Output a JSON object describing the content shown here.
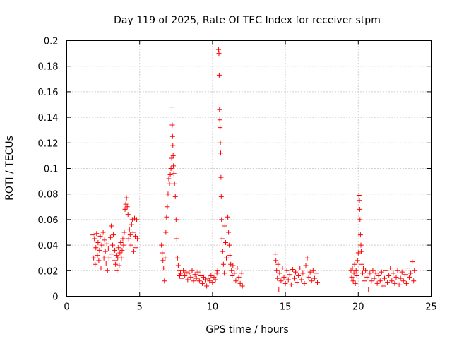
{
  "chart_data": {
    "type": "scatter",
    "title": "Day 119 of 2025, Rate Of TEC Index for receiver stpm",
    "xlabel": "GPS time / hours",
    "ylabel": "ROTI / TECUs",
    "xlim": [
      0,
      25
    ],
    "ylim": [
      0,
      0.2
    ],
    "xticks": [
      0,
      5,
      10,
      15,
      20,
      25
    ],
    "yticks": [
      0,
      0.02,
      0.04,
      0.06,
      0.08,
      0.1,
      0.12,
      0.14,
      0.16,
      0.18,
      0.2
    ],
    "xtick_labels": [
      "0",
      "5",
      "10",
      "15",
      "20",
      "25"
    ],
    "ytick_labels": [
      "0",
      "0.02",
      "0.04",
      "0.06",
      "0.08",
      "0.1",
      "0.12",
      "0.14",
      "0.16",
      "0.18",
      "0.2"
    ],
    "grid": true,
    "marker": "+",
    "color": "#ff0000",
    "series": [
      {
        "name": "ROTI",
        "points": [
          [
            1.8,
            0.048
          ],
          [
            1.85,
            0.03
          ],
          [
            1.9,
            0.045
          ],
          [
            1.95,
            0.025
          ],
          [
            2.0,
            0.038
          ],
          [
            2.05,
            0.049
          ],
          [
            2.1,
            0.032
          ],
          [
            2.15,
            0.042
          ],
          [
            2.2,
            0.028
          ],
          [
            2.25,
            0.036
          ],
          [
            2.3,
            0.047
          ],
          [
            2.35,
            0.022
          ],
          [
            2.4,
            0.04
          ],
          [
            2.5,
            0.05
          ],
          [
            2.55,
            0.03
          ],
          [
            2.6,
            0.044
          ],
          [
            2.65,
            0.035
          ],
          [
            2.7,
            0.026
          ],
          [
            2.75,
            0.041
          ],
          [
            2.8,
            0.02
          ],
          [
            2.85,
            0.037
          ],
          [
            2.9,
            0.03
          ],
          [
            3.0,
            0.046
          ],
          [
            3.05,
            0.055
          ],
          [
            3.1,
            0.033
          ],
          [
            3.15,
            0.04
          ],
          [
            3.2,
            0.048
          ],
          [
            3.25,
            0.028
          ],
          [
            3.3,
            0.036
          ],
          [
            3.35,
            0.025
          ],
          [
            3.4,
            0.032
          ],
          [
            3.45,
            0.02
          ],
          [
            3.5,
            0.03
          ],
          [
            3.55,
            0.038
          ],
          [
            3.6,
            0.024
          ],
          [
            3.65,
            0.034
          ],
          [
            3.7,
            0.042
          ],
          [
            3.75,
            0.03
          ],
          [
            3.8,
            0.036
          ],
          [
            3.85,
            0.045
          ],
          [
            3.9,
            0.04
          ],
          [
            3.95,
            0.05
          ],
          [
            4.0,
            0.068
          ],
          [
            4.05,
            0.072
          ],
          [
            4.1,
            0.077
          ],
          [
            4.15,
            0.07
          ],
          [
            4.2,
            0.064
          ],
          [
            4.25,
            0.045
          ],
          [
            4.3,
            0.052
          ],
          [
            4.35,
            0.048
          ],
          [
            4.4,
            0.04
          ],
          [
            4.45,
            0.056
          ],
          [
            4.5,
            0.06
          ],
          [
            4.55,
            0.05
          ],
          [
            4.6,
            0.035
          ],
          [
            4.65,
            0.061
          ],
          [
            4.7,
            0.047
          ],
          [
            4.75,
            0.038
          ],
          [
            4.8,
            0.06
          ],
          [
            4.85,
            0.045
          ],
          [
            6.5,
            0.04
          ],
          [
            6.55,
            0.034
          ],
          [
            6.6,
            0.028
          ],
          [
            6.65,
            0.022
          ],
          [
            6.7,
            0.012
          ],
          [
            6.75,
            0.03
          ],
          [
            6.8,
            0.05
          ],
          [
            6.85,
            0.062
          ],
          [
            6.9,
            0.07
          ],
          [
            6.95,
            0.08
          ],
          [
            7.0,
            0.092
          ],
          [
            7.05,
            0.088
          ],
          [
            7.1,
            0.095
          ],
          [
            7.15,
            0.1
          ],
          [
            7.2,
            0.108
          ],
          [
            7.22,
            0.148
          ],
          [
            7.24,
            0.134
          ],
          [
            7.26,
            0.125
          ],
          [
            7.28,
            0.118
          ],
          [
            7.3,
            0.11
          ],
          [
            7.32,
            0.102
          ],
          [
            7.35,
            0.096
          ],
          [
            7.4,
            0.088
          ],
          [
            7.45,
            0.078
          ],
          [
            7.5,
            0.06
          ],
          [
            7.55,
            0.045
          ],
          [
            7.6,
            0.03
          ],
          [
            7.65,
            0.024
          ],
          [
            7.7,
            0.02
          ],
          [
            7.75,
            0.016
          ],
          [
            7.8,
            0.018
          ],
          [
            7.9,
            0.014
          ],
          [
            8.0,
            0.02
          ],
          [
            8.1,
            0.016
          ],
          [
            8.2,
            0.019
          ],
          [
            8.3,
            0.013
          ],
          [
            8.4,
            0.018
          ],
          [
            8.5,
            0.015
          ],
          [
            8.6,
            0.02
          ],
          [
            8.7,
            0.012
          ],
          [
            8.8,
            0.017
          ],
          [
            8.9,
            0.014
          ],
          [
            9.0,
            0.019
          ],
          [
            9.1,
            0.012
          ],
          [
            9.2,
            0.016
          ],
          [
            9.3,
            0.01
          ],
          [
            9.4,
            0.015
          ],
          [
            9.5,
            0.013
          ],
          [
            9.6,
            0.008
          ],
          [
            9.7,
            0.014
          ],
          [
            9.8,
            0.012
          ],
          [
            9.9,
            0.016
          ],
          [
            10.0,
            0.011
          ],
          [
            10.1,
            0.015
          ],
          [
            10.2,
            0.013
          ],
          [
            10.3,
            0.018
          ],
          [
            10.35,
            0.02
          ],
          [
            10.42,
            0.193
          ],
          [
            10.44,
            0.19
          ],
          [
            10.46,
            0.173
          ],
          [
            10.48,
            0.146
          ],
          [
            10.5,
            0.138
          ],
          [
            10.52,
            0.132
          ],
          [
            10.54,
            0.12
          ],
          [
            10.56,
            0.112
          ],
          [
            10.58,
            0.093
          ],
          [
            10.6,
            0.078
          ],
          [
            10.62,
            0.06
          ],
          [
            10.65,
            0.045
          ],
          [
            10.7,
            0.035
          ],
          [
            10.75,
            0.025
          ],
          [
            10.8,
            0.018
          ],
          [
            10.85,
            0.055
          ],
          [
            10.9,
            0.042
          ],
          [
            10.95,
            0.03
          ],
          [
            11.0,
            0.058
          ],
          [
            11.05,
            0.062
          ],
          [
            11.1,
            0.05
          ],
          [
            11.15,
            0.04
          ],
          [
            11.2,
            0.032
          ],
          [
            11.25,
            0.025
          ],
          [
            11.3,
            0.02
          ],
          [
            11.35,
            0.016
          ],
          [
            11.4,
            0.024
          ],
          [
            11.5,
            0.018
          ],
          [
            11.6,
            0.012
          ],
          [
            11.7,
            0.022
          ],
          [
            11.8,
            0.015
          ],
          [
            11.9,
            0.01
          ],
          [
            12.0,
            0.018
          ],
          [
            12.05,
            0.008
          ],
          [
            14.3,
            0.033
          ],
          [
            14.35,
            0.028
          ],
          [
            14.4,
            0.02
          ],
          [
            14.45,
            0.014
          ],
          [
            14.5,
            0.025
          ],
          [
            14.55,
            0.005
          ],
          [
            14.6,
            0.018
          ],
          [
            14.7,
            0.012
          ],
          [
            14.8,
            0.022
          ],
          [
            14.9,
            0.015
          ],
          [
            15.0,
            0.01
          ],
          [
            15.1,
            0.02
          ],
          [
            15.2,
            0.013
          ],
          [
            15.3,
            0.017
          ],
          [
            15.4,
            0.009
          ],
          [
            15.5,
            0.021
          ],
          [
            15.6,
            0.014
          ],
          [
            15.7,
            0.019
          ],
          [
            15.8,
            0.011
          ],
          [
            15.9,
            0.016
          ],
          [
            16.0,
            0.022
          ],
          [
            16.1,
            0.013
          ],
          [
            16.2,
            0.018
          ],
          [
            16.3,
            0.01
          ],
          [
            16.4,
            0.024
          ],
          [
            16.5,
            0.03
          ],
          [
            16.6,
            0.015
          ],
          [
            16.7,
            0.019
          ],
          [
            16.8,
            0.012
          ],
          [
            16.9,
            0.02
          ],
          [
            17.0,
            0.014
          ],
          [
            17.1,
            0.018
          ],
          [
            17.2,
            0.011
          ],
          [
            19.5,
            0.02
          ],
          [
            19.55,
            0.015
          ],
          [
            19.6,
            0.022
          ],
          [
            19.65,
            0.012
          ],
          [
            19.7,
            0.018
          ],
          [
            19.75,
            0.025
          ],
          [
            19.8,
            0.01
          ],
          [
            19.85,
            0.02
          ],
          [
            19.9,
            0.016
          ],
          [
            19.95,
            0.028
          ],
          [
            20.0,
            0.034
          ],
          [
            20.05,
            0.079
          ],
          [
            20.08,
            0.075
          ],
          [
            20.1,
            0.068
          ],
          [
            20.12,
            0.06
          ],
          [
            20.15,
            0.048
          ],
          [
            20.18,
            0.04
          ],
          [
            20.2,
            0.035
          ],
          [
            20.25,
            0.025
          ],
          [
            20.3,
            0.018
          ],
          [
            20.35,
            0.022
          ],
          [
            20.4,
            0.012
          ],
          [
            20.5,
            0.02
          ],
          [
            20.6,
            0.015
          ],
          [
            20.7,
            0.005
          ],
          [
            20.8,
            0.018
          ],
          [
            20.9,
            0.012
          ],
          [
            21.0,
            0.02
          ],
          [
            21.1,
            0.014
          ],
          [
            21.2,
            0.018
          ],
          [
            21.3,
            0.01
          ],
          [
            21.4,
            0.016
          ],
          [
            21.5,
            0.012
          ],
          [
            21.6,
            0.019
          ],
          [
            21.7,
            0.008
          ],
          [
            21.8,
            0.014
          ],
          [
            21.9,
            0.02
          ],
          [
            22.0,
            0.011
          ],
          [
            22.1,
            0.016
          ],
          [
            22.2,
            0.022
          ],
          [
            22.3,
            0.012
          ],
          [
            22.4,
            0.018
          ],
          [
            22.5,
            0.01
          ],
          [
            22.6,
            0.015
          ],
          [
            22.7,
            0.02
          ],
          [
            22.8,
            0.009
          ],
          [
            22.9,
            0.014
          ],
          [
            23.0,
            0.019
          ],
          [
            23.1,
            0.012
          ],
          [
            23.2,
            0.017
          ],
          [
            23.3,
            0.01
          ],
          [
            23.4,
            0.022
          ],
          [
            23.5,
            0.015
          ],
          [
            23.6,
            0.018
          ],
          [
            23.7,
            0.027
          ],
          [
            23.8,
            0.012
          ],
          [
            23.85,
            0.02
          ]
        ]
      }
    ]
  }
}
